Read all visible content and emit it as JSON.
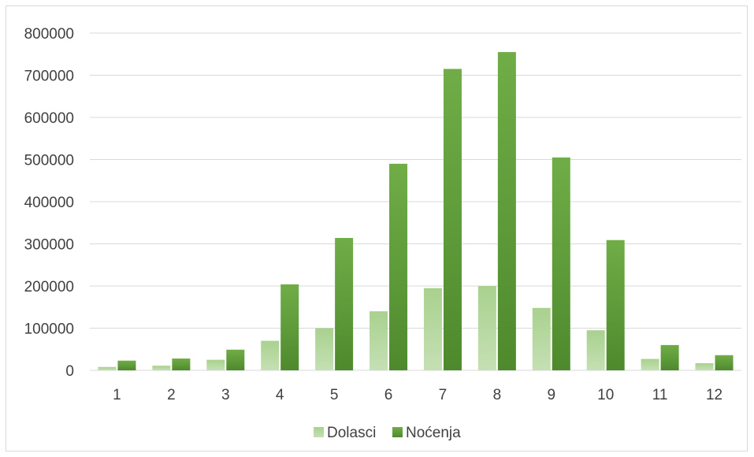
{
  "chart_data": {
    "type": "bar",
    "title": "",
    "xlabel": "",
    "ylabel": "",
    "categories": [
      "1",
      "2",
      "3",
      "4",
      "5",
      "6",
      "7",
      "8",
      "9",
      "10",
      "11",
      "12"
    ],
    "series": [
      {
        "name": "Dolasci",
        "color": "#a9d18e",
        "values": [
          8000,
          11000,
          25000,
          70000,
          100000,
          140000,
          195000,
          200000,
          148000,
          95000,
          27000,
          17000
        ]
      },
      {
        "name": "Noćenja",
        "color": "#548235",
        "values": [
          23000,
          28000,
          49000,
          204000,
          314000,
          490000,
          715000,
          755000,
          505000,
          309000,
          60000,
          36000
        ]
      }
    ],
    "ylim": [
      0,
      800000
    ],
    "yticks": [
      0,
      100000,
      200000,
      300000,
      400000,
      500000,
      600000,
      700000,
      800000
    ],
    "ytick_labels": [
      "0",
      "100000",
      "200000",
      "300000",
      "400000",
      "500000",
      "600000",
      "700000",
      "800000"
    ],
    "grid": true,
    "legend_position": "bottom"
  }
}
